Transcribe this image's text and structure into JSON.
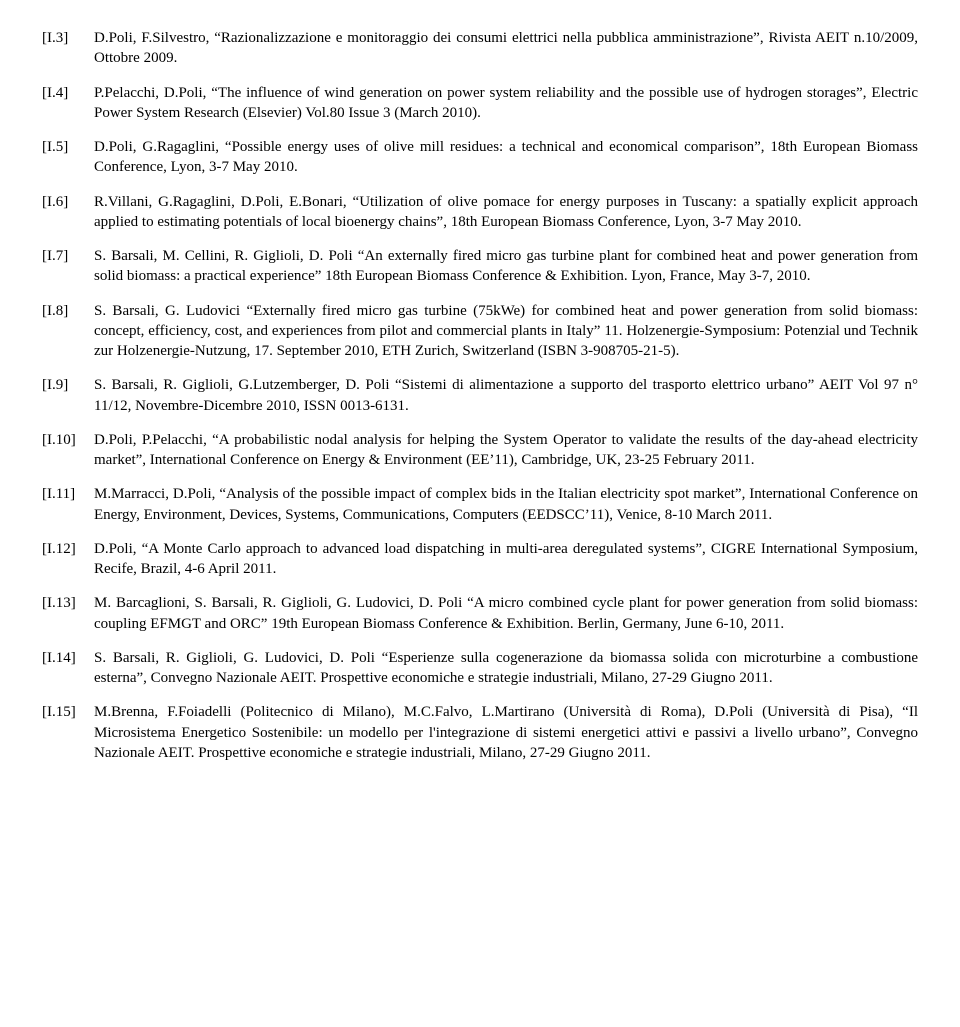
{
  "references": [
    {
      "key": "[I.3]",
      "text": "D.Poli, F.Silvestro, “Razionalizzazione e monitoraggio dei consumi elettrici nella pubblica amministrazione”, Rivista AEIT n.10/2009, Ottobre 2009."
    },
    {
      "key": "[I.4]",
      "text": "P.Pelacchi, D.Poli, “The influence of wind generation on power system reliability and the possible use of hydrogen storages”, Electric Power System Research (Elsevier) Vol.80 Issue 3 (March 2010)."
    },
    {
      "key": "[I.5]",
      "text": "D.Poli, G.Ragaglini, “Possible energy uses of olive mill residues: a technical and economical comparison”, 18th European Biomass Conference, Lyon, 3-7 May 2010."
    },
    {
      "key": "[I.6]",
      "text": "R.Villani, G.Ragaglini, D.Poli, E.Bonari, “Utilization of olive pomace for energy purposes in Tuscany: a spatially explicit approach applied to estimating potentials of local bioenergy chains”, 18th European Biomass Conference, Lyon, 3-7 May 2010."
    },
    {
      "key": "[I.7]",
      "text": "S. Barsali, M. Cellini, R. Giglioli, D. Poli “An externally fired micro gas turbine plant for combined heat and power generation from solid biomass: a practical experience” 18th European Biomass Conference & Exhibition. Lyon, France, May 3-7, 2010."
    },
    {
      "key": "[I.8]",
      "text": "S. Barsali, G. Ludovici “Externally fired micro gas turbine (75kWe) for combined heat and power generation from solid biomass: concept, efficiency, cost, and experiences from pilot and commercial plants in Italy” 11. Holzenergie-Symposium: Potenzial und Technik zur Holzenergie-Nutzung, 17. September 2010, ETH Zurich, Switzerland (ISBN 3-908705-21-5)."
    },
    {
      "key": "[I.9]",
      "text": "S. Barsali, R. Giglioli, G.Lutzemberger, D. Poli “Sistemi di alimentazione a supporto del trasporto elettrico urbano” AEIT Vol 97 n° 11/12, Novembre-Dicembre 2010, ISSN 0013-6131."
    },
    {
      "key": "[I.10]",
      "text": "D.Poli, P.Pelacchi, “A probabilistic nodal analysis for helping the System Operator to validate the results of the day-ahead electricity market”, International Conference on Energy & Environment (EE’11), Cambridge, UK, 23-25 February 2011."
    },
    {
      "key": "[I.11]",
      "text": "M.Marracci, D.Poli, “Analysis of the possible impact of complex bids in the Italian electricity spot market”, International Conference on Energy, Environment, Devices, Systems, Communications, Computers (EEDSCC’11), Venice, 8-10 March 2011."
    },
    {
      "key": "[I.12]",
      "text": "D.Poli, “A Monte Carlo approach to advanced load dispatching in multi-area deregulated systems”, CIGRE International Symposium, Recife, Brazil, 4-6 April 2011."
    },
    {
      "key": "[I.13]",
      "text": "M. Barcaglioni, S. Barsali, R. Giglioli, G. Ludovici, D. Poli “A micro combined cycle plant for power generation from solid biomass: coupling EFMGT and ORC” 19th European Biomass Conference & Exhibition. Berlin, Germany, June 6-10, 2011."
    },
    {
      "key": "[I.14]",
      "text": "S. Barsali, R. Giglioli, G. Ludovici, D. Poli “Esperienze sulla cogenerazione da biomassa solida con microturbine a combustione esterna”, Convegno Nazionale AEIT. Prospettive economiche e strategie industriali, Milano, 27-29 Giugno 2011."
    },
    {
      "key": "[I.15]",
      "text": "M.Brenna, F.Foiadelli (Politecnico di Milano), M.C.Falvo, L.Martirano (Università di Roma), D.Poli (Università di Pisa), “Il Microsistema Energetico Sostenibile: un modello per l'integrazione di sistemi energetici attivi e passivi a livello urbano”, Convegno Nazionale AEIT. Prospettive economiche e strategie industriali, Milano, 27-29 Giugno 2011."
    }
  ]
}
